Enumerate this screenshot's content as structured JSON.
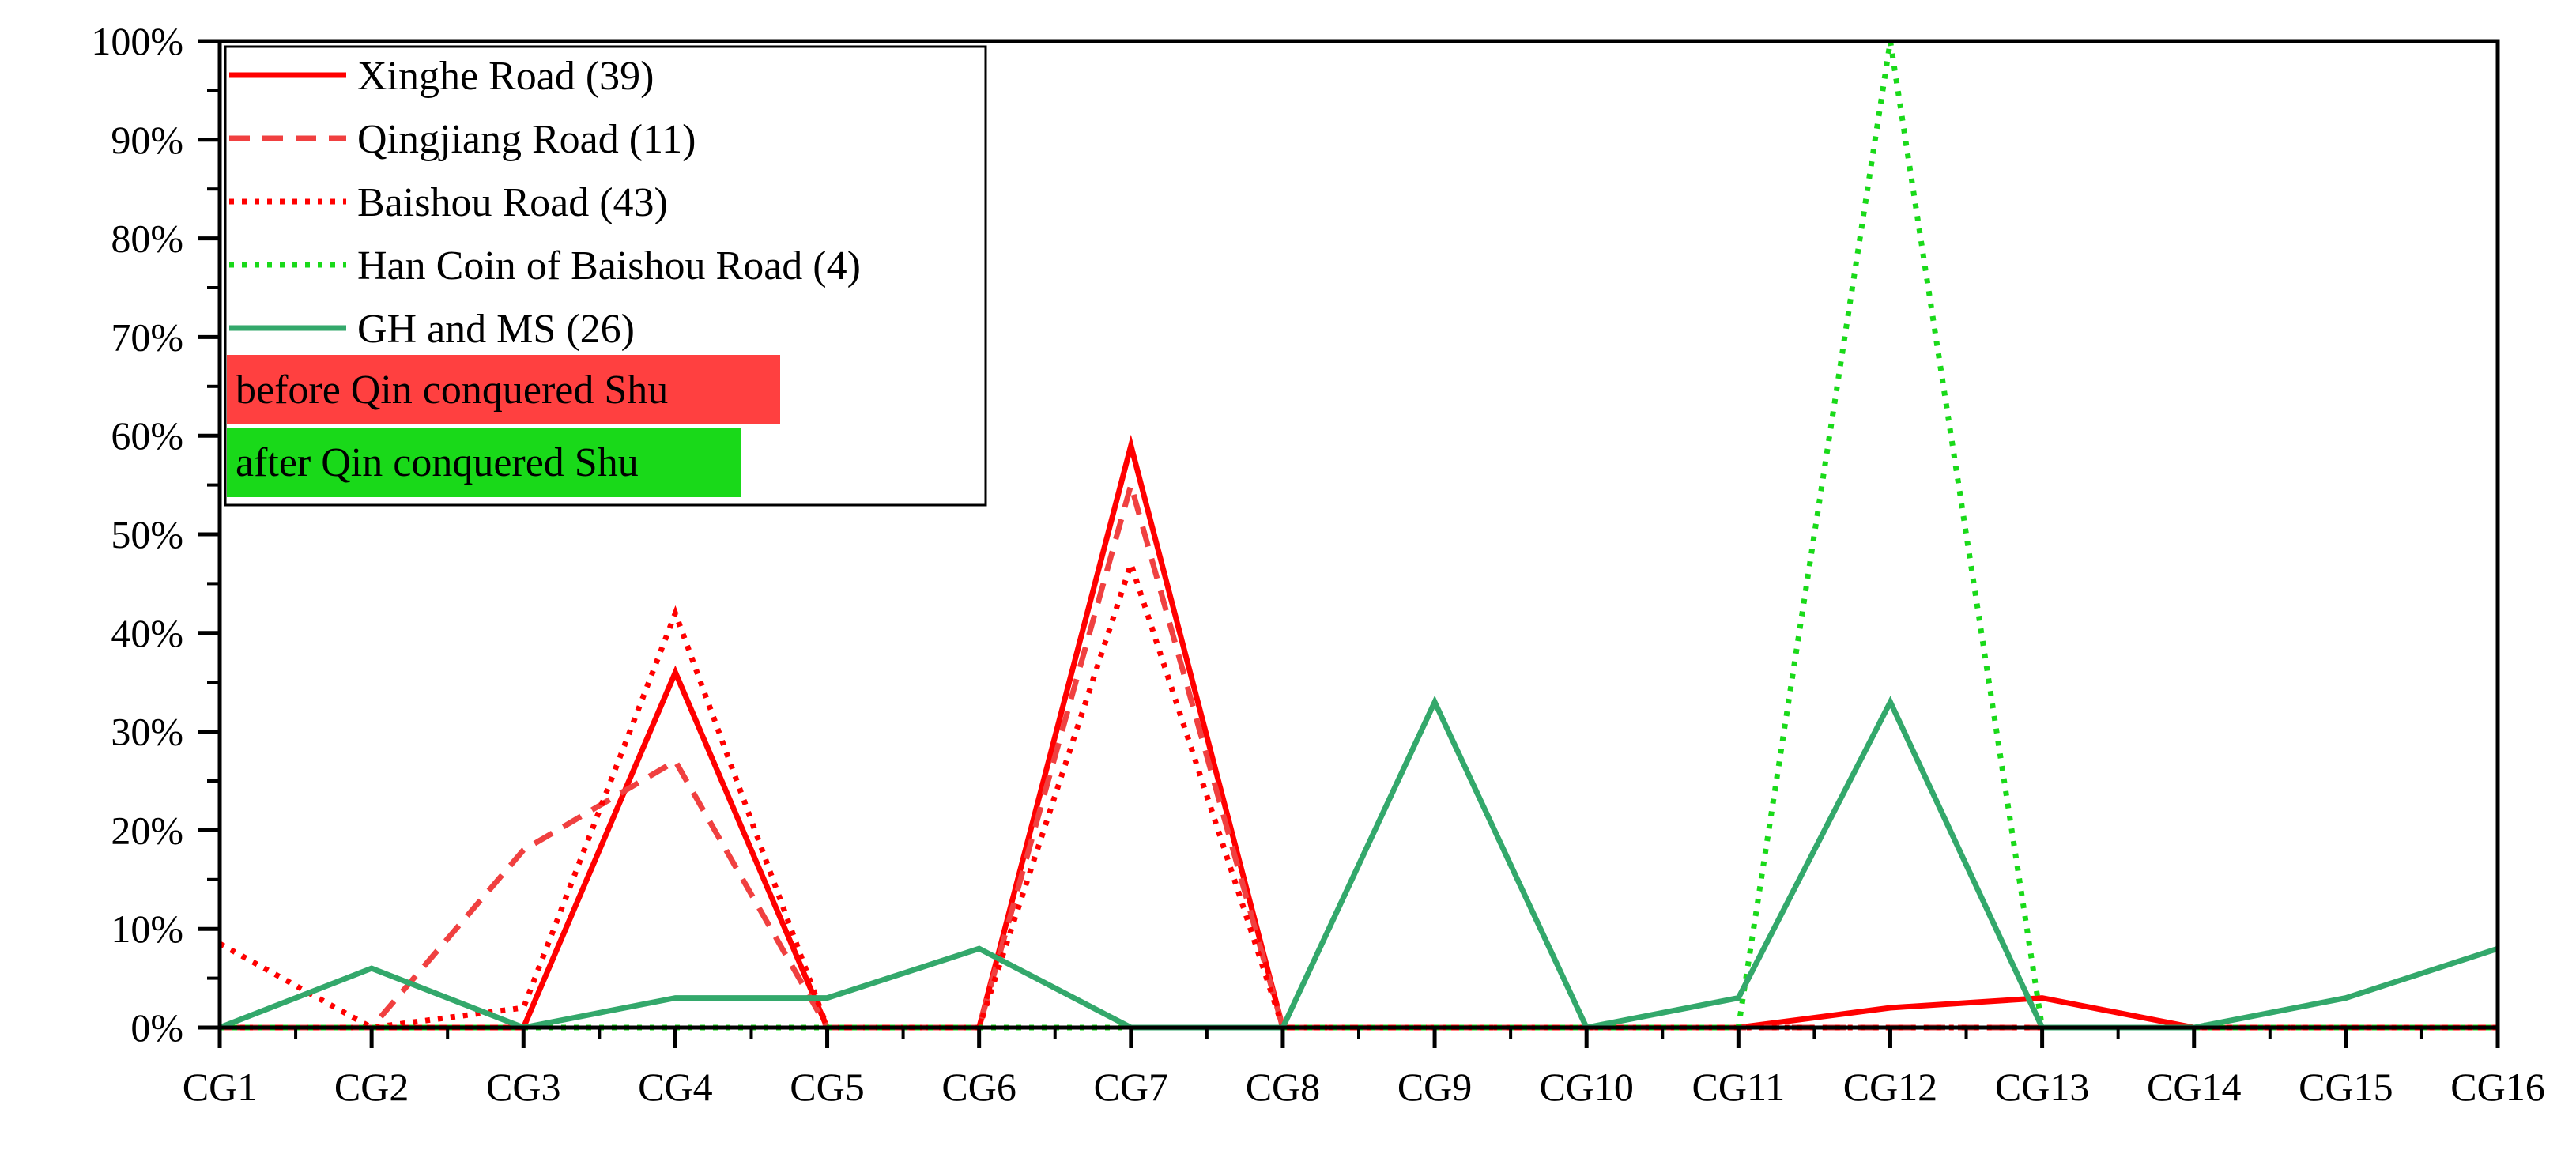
{
  "chart_data": {
    "type": "line",
    "categories": [
      "CG1",
      "CG2",
      "CG3",
      "CG4",
      "CG5",
      "CG6",
      "CG7",
      "CG8",
      "CG9",
      "CG10",
      "CG11",
      "CG12",
      "CG13",
      "CG14",
      "CG15",
      "CG16"
    ],
    "ylim": [
      0,
      100
    ],
    "y_ticks": [
      "0%",
      "10%",
      "20%",
      "30%",
      "40%",
      "50%",
      "60%",
      "70%",
      "80%",
      "90%",
      "100%"
    ],
    "title": "",
    "xlabel": "",
    "ylabel": "",
    "grid": false,
    "legend_position": "top-left",
    "series": [
      {
        "name": "Xinghe Road (39)",
        "color": "#ff0000",
        "dash": "solid",
        "values": [
          0,
          0,
          0,
          36,
          0,
          0,
          59,
          0,
          0,
          0,
          0,
          2,
          3,
          0,
          0,
          0
        ]
      },
      {
        "name": "Qingjiang Road (11)",
        "color": "#f04040",
        "dash": "dashed",
        "values": [
          0,
          0,
          18,
          27,
          0,
          0,
          55,
          0,
          0,
          0,
          0,
          0,
          0,
          0,
          0,
          0
        ]
      },
      {
        "name": "Baishou Road (43)",
        "color": "#ff0000",
        "dash": "dotted",
        "values": [
          8.5,
          0,
          2,
          42,
          0,
          0,
          47,
          0,
          0,
          0,
          0,
          0,
          0,
          0,
          0,
          0
        ]
      },
      {
        "name": "Han Coin of Baishou Road (4)",
        "color": "#19d919",
        "dash": "dotted",
        "values": [
          0,
          0,
          0,
          0,
          0,
          0,
          0,
          0,
          0,
          0,
          0,
          100,
          0,
          0,
          0,
          0
        ]
      },
      {
        "name": "GH and MS (26)",
        "color": "#33a86b",
        "dash": "solid",
        "values": [
          0,
          6,
          0,
          3,
          3,
          8,
          0,
          0,
          33,
          0,
          3,
          33,
          0,
          0,
          3,
          8
        ]
      }
    ],
    "period_labels": [
      {
        "text": "before Qin conquered Shu",
        "color": "#ff4040"
      },
      {
        "text": "after Qin conquered Shu",
        "color": "#19d919"
      }
    ]
  }
}
